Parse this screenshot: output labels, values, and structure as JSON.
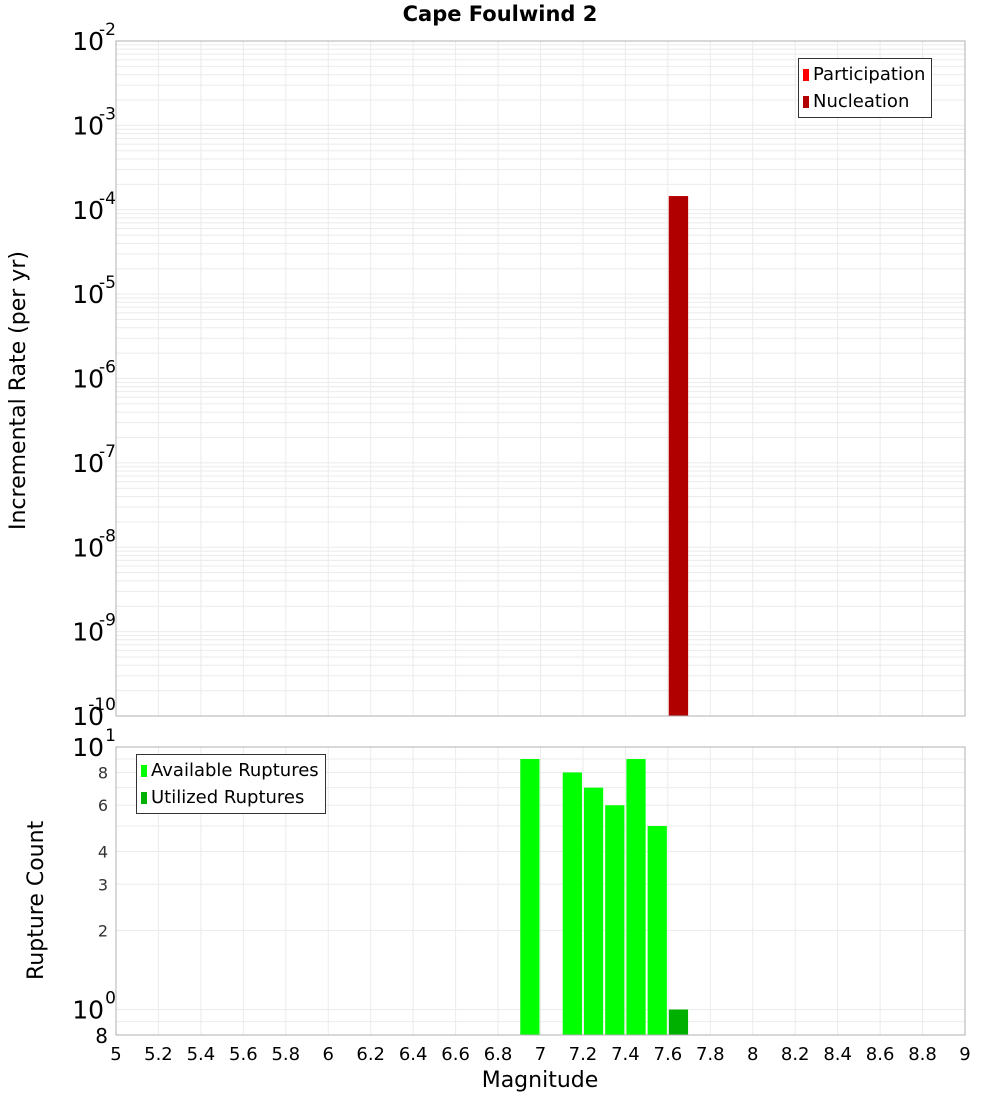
{
  "title": "Cape Foulwind 2",
  "top_plot": {
    "ylabel": "Incremental Rate (per yr)",
    "legend": [
      {
        "label": "Participation",
        "color": "#ff0000"
      },
      {
        "label": "Nucleation",
        "color": "#b00000"
      }
    ]
  },
  "bottom_plot": {
    "ylabel": "Rupture Count",
    "legend": [
      {
        "label": "Available Ruptures",
        "color": "#00ff00"
      },
      {
        "label": "Utilized Ruptures",
        "color": "#00b000"
      }
    ]
  },
  "xlabel": "Magnitude",
  "chart_data": [
    {
      "type": "bar",
      "title": "Cape Foulwind 2",
      "xlabel": "Magnitude",
      "ylabel": "Incremental Rate (per yr)",
      "yscale": "log",
      "ylim": [
        1e-10,
        0.01
      ],
      "xlim": [
        5,
        9
      ],
      "ytick_labels": [
        "10^-2",
        "10^-3",
        "10^-4",
        "10^-5",
        "10^-6",
        "10^-7",
        "10^-8",
        "10^-9",
        "10^-10"
      ],
      "legend_position": "upper right",
      "grid": true,
      "series": [
        {
          "name": "Participation",
          "color": "#ff0000",
          "x": [
            7.65
          ],
          "values": [
            0.000145
          ]
        },
        {
          "name": "Nucleation",
          "color": "#b00000",
          "x": [
            7.65
          ],
          "values": [
            0.000145
          ]
        }
      ]
    },
    {
      "type": "bar",
      "xlabel": "Magnitude",
      "ylabel": "Rupture Count",
      "yscale": "log",
      "ylim": [
        0.8,
        10
      ],
      "xlim": [
        5,
        9
      ],
      "xtick_labels": [
        "5",
        "5.2",
        "5.4",
        "5.6",
        "5.8",
        "6",
        "6.2",
        "6.4",
        "6.6",
        "6.8",
        "7",
        "7.2",
        "7.4",
        "7.6",
        "7.8",
        "8",
        "8.2",
        "8.4",
        "8.6",
        "8.8",
        "9"
      ],
      "ytick_labels": [
        "10^1",
        "8",
        "6",
        "4",
        "3",
        "2",
        "10^0",
        "8"
      ],
      "legend_position": "upper left",
      "grid": true,
      "series": [
        {
          "name": "Available Ruptures",
          "color": "#00ff00",
          "x": [
            6.95,
            7.15,
            7.25,
            7.35,
            7.45,
            7.55
          ],
          "values": [
            9,
            8,
            7,
            6,
            9,
            5
          ]
        },
        {
          "name": "Utilized Ruptures",
          "color": "#00b000",
          "x": [
            7.65
          ],
          "values": [
            1
          ]
        }
      ]
    }
  ]
}
